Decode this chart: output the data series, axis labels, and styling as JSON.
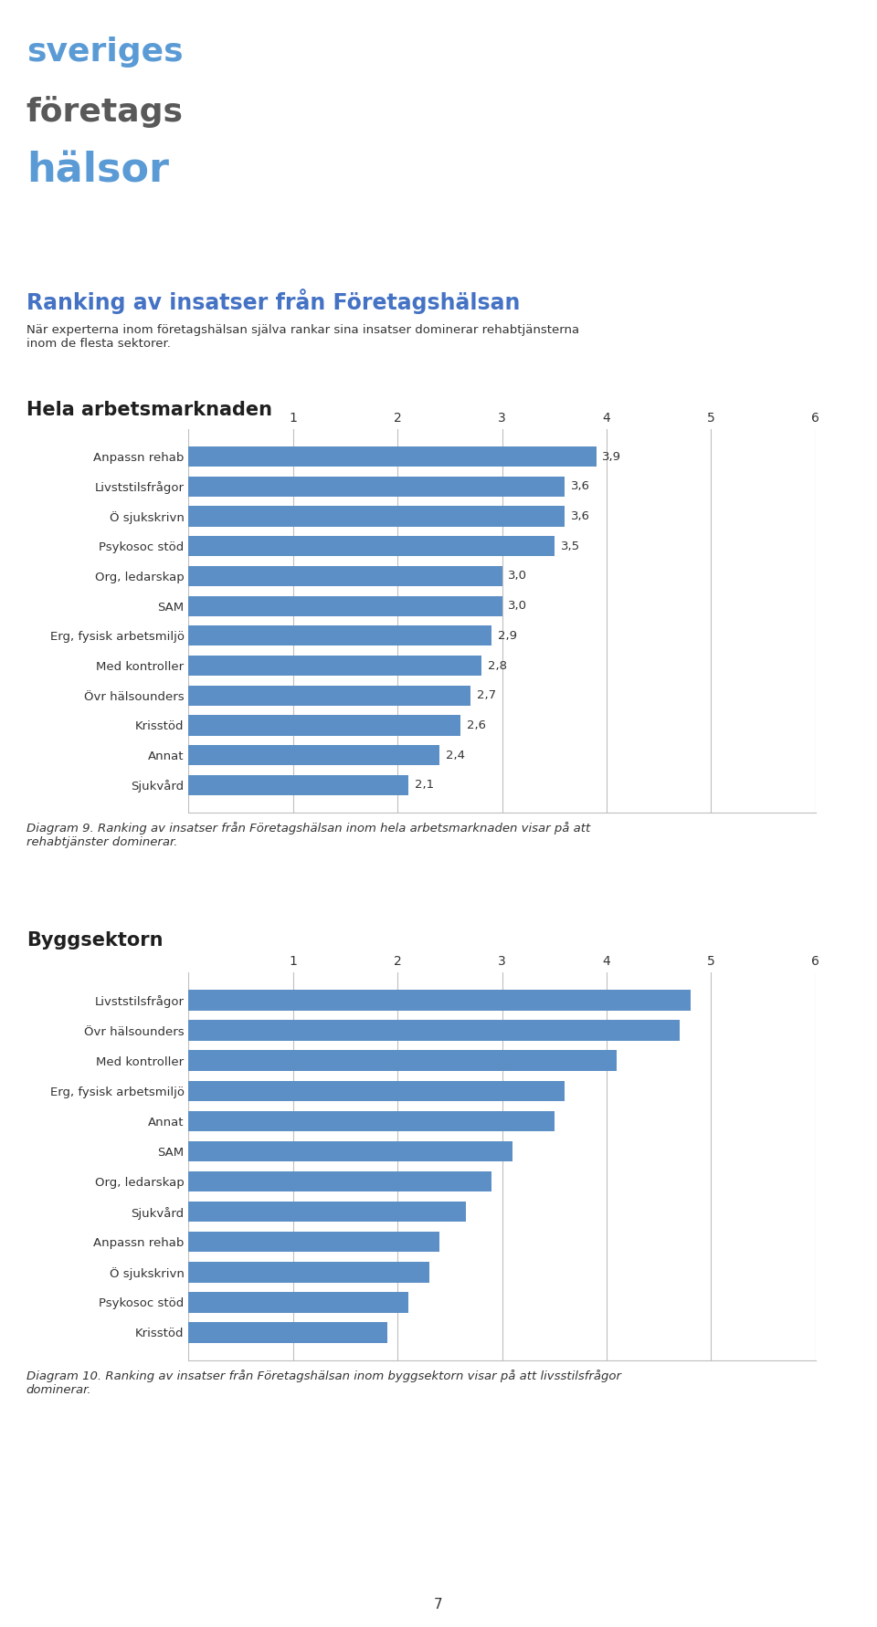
{
  "title": "Ranking av insatser från Företagshälsan",
  "subtitle": "När experterna inom företagshälsan själva rankar sina insatser dominerar rehabtjänsterna\ninom de flesta sektorer.",
  "logo_lines": [
    "sveriges",
    "företags",
    "hälsor"
  ],
  "logo_colors": [
    "#5b9bd5",
    "#595959",
    "#5b9bd5"
  ],
  "chart1_title": "Hela arbetsmarknaden",
  "chart1_categories": [
    "Anpassn rehab",
    "Livststilsfrågor",
    "Ö sjukskrivn",
    "Psykosoc stöd",
    "Org, ledarskap",
    "SAM",
    "Erg, fysisk arbetsmiljö",
    "Med kontroller",
    "Övr hälsounders",
    "Krisstöd",
    "Annat",
    "Sjukvård"
  ],
  "chart1_values": [
    3.9,
    3.6,
    3.6,
    3.5,
    3.0,
    3.0,
    2.9,
    2.8,
    2.7,
    2.6,
    2.4,
    2.1
  ],
  "chart1_xlim": [
    0,
    6
  ],
  "chart1_xticks": [
    1,
    2,
    3,
    4,
    5,
    6
  ],
  "chart1_caption": "Diagram 9. Ranking av insatser från Företagshälsan inom hela arbetsmarknaden visar på att\nrehabtjänster dominerar.",
  "chart2_title": "Byggsektorn",
  "chart2_categories": [
    "Livststilsfrågor",
    "Övr hälsounders",
    "Med kontroller",
    "Erg, fysisk arbetsmiljö",
    "Annat",
    "SAM",
    "Org, ledarskap",
    "Sjukvård",
    "Anpassn rehab",
    "Ö sjukskrivn",
    "Psykosoc stöd",
    "Krisstöd"
  ],
  "chart2_values": [
    4.8,
    4.7,
    4.1,
    3.6,
    3.5,
    3.1,
    2.9,
    2.65,
    2.4,
    2.3,
    2.1,
    1.9
  ],
  "chart2_xlim": [
    0,
    6
  ],
  "chart2_xticks": [
    1,
    2,
    3,
    4,
    5,
    6
  ],
  "chart2_caption": "Diagram 10. Ranking av insatser från Företagshälsan inom byggsektorn visar på att livsstilsfrågor\ndominerar.",
  "bar_color": "#5b8fc5",
  "title_color": "#4472c4",
  "section_title_color": "#1f1f1f",
  "bg_color": "#ffffff",
  "gridline_color": "#bfbfbf",
  "page_number": "7"
}
